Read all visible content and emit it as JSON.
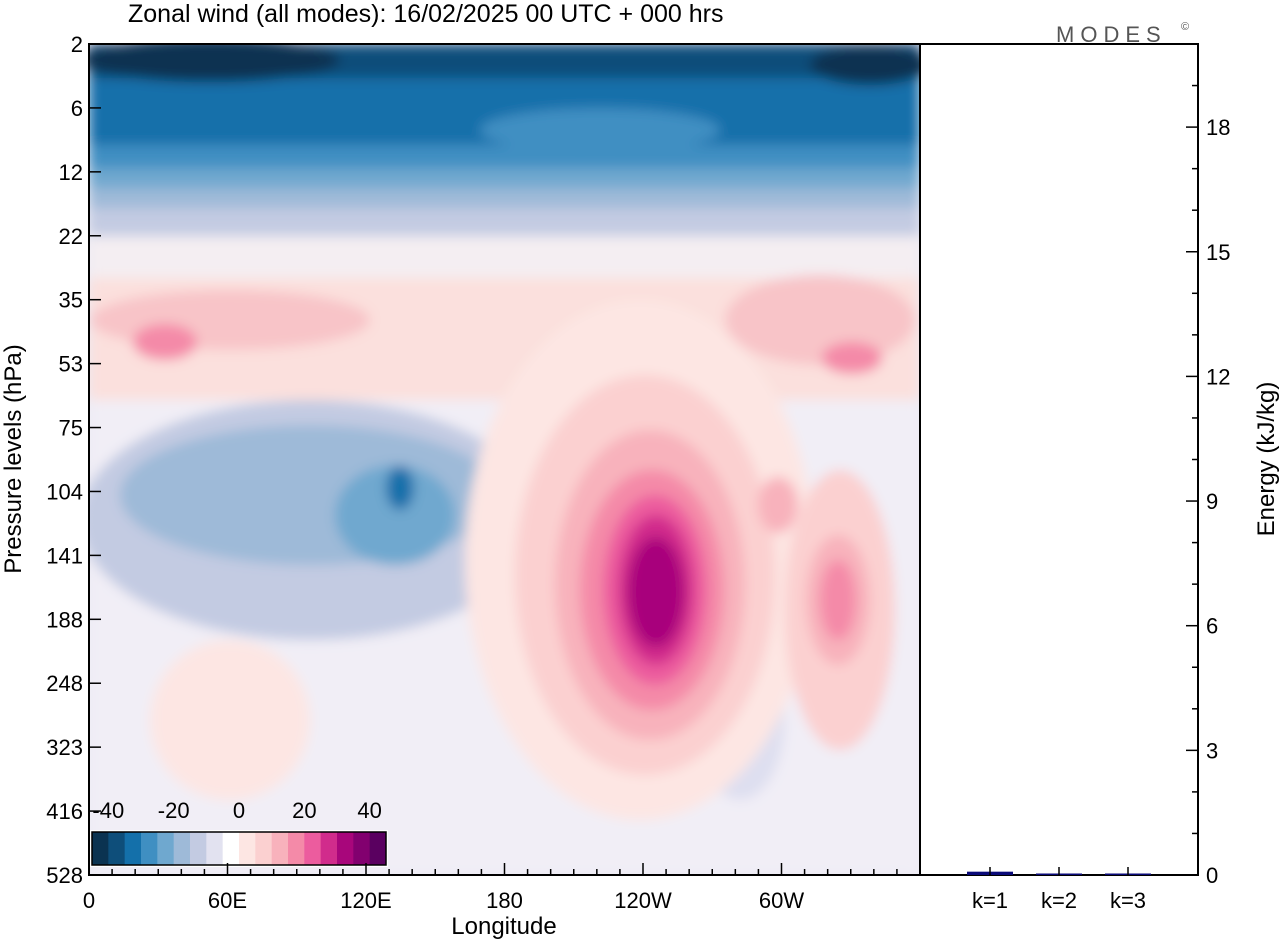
{
  "title": "Zonal wind (all modes):  16/02/2025  00 UTC  + 000 hrs",
  "logo": "MODES",
  "logo_mark": "©",
  "chart_data": [
    {
      "type": "heatmap",
      "title": "Zonal wind (all modes):  16/02/2025  00 UTC  + 000 hrs",
      "xlabel": "Longitude",
      "ylabel": "Pressure levels (hPa)",
      "x_ticks": [
        "0",
        "60E",
        "120E",
        "180",
        "120W",
        "60W"
      ],
      "x_tick_degrees": [
        0,
        60,
        120,
        180,
        240,
        300
      ],
      "xlim_degrees": [
        0,
        360
      ],
      "y_ticks": [
        "2",
        "6",
        "12",
        "22",
        "35",
        "53",
        "75",
        "104",
        "141",
        "188",
        "248",
        "323",
        "416",
        "528"
      ],
      "y_order": "top-to-bottom",
      "colorbar": {
        "tick_labels": [
          "-40",
          "-20",
          "0",
          "20",
          "40"
        ],
        "tick_values": [
          -40,
          -20,
          0,
          20,
          40
        ],
        "range": [
          -45,
          45
        ],
        "colors": [
          "#0b3351",
          "#0e4e7a",
          "#1470aa",
          "#3f8fc2",
          "#6fa8cf",
          "#9ebad8",
          "#c3cbe2",
          "#e2e2f0",
          "#ffffff",
          "#fde6e3",
          "#fbd0d0",
          "#f8b2bc",
          "#f48aa8",
          "#ec5c9e",
          "#d12c8c",
          "#a8067b",
          "#82006f",
          "#5a0060"
        ]
      },
      "features": [
        {
          "region": "upper levels 2-12 hPa, all longitudes",
          "value": -30
        },
        {
          "region": "near 0-40E, 2 hPa",
          "value": -42
        },
        {
          "region": "35-75 hPa, 0-60E",
          "value": 8
        },
        {
          "region": "104-141 hPa, near 135E",
          "value": -32
        },
        {
          "region": "104-188 hPa, 0-150E",
          "value": -18
        },
        {
          "region": "104-248 hPa, near 125W",
          "value": 40
        },
        {
          "region": "141-248 hPa, near 65W",
          "value": 18
        },
        {
          "region": "lower levels 248-528 hPa",
          "value": -2
        }
      ],
      "grid": false
    },
    {
      "type": "bar",
      "ylabel": "Energy (kJ/kg)",
      "categories": [
        "k=1",
        "k=2",
        "k=3"
      ],
      "values": [
        0.08,
        0.03,
        0.02
      ],
      "ylim": [
        0,
        20
      ],
      "y_ticks": [
        "0",
        "3",
        "6",
        "9",
        "12",
        "15",
        "18"
      ],
      "y_tick_values": [
        0,
        3,
        6,
        9,
        12,
        15,
        18
      ],
      "bar_color": "#0a0a78"
    }
  ]
}
